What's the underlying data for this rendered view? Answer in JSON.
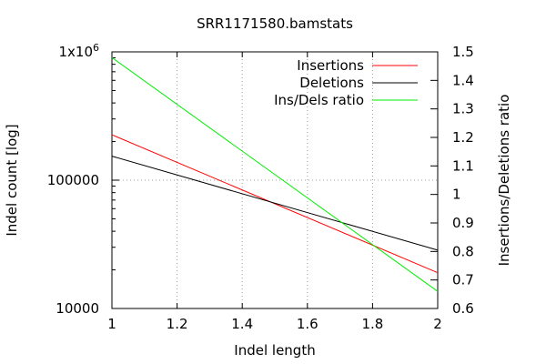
{
  "chart_data": {
    "type": "line",
    "title": "SRR1171580.bamstats",
    "xlabel": "Indel length",
    "ylabel": "Indel count [log]",
    "y2label": "Insertions/Deletions ratio",
    "xlim": [
      1,
      2
    ],
    "ylim": [
      10000,
      1000000
    ],
    "y2lim": [
      0.6,
      1.5
    ],
    "yscale": "log",
    "grid": true,
    "legend_position": "top-right",
    "x_ticks": [
      {
        "value": 1,
        "label": "1"
      },
      {
        "value": 1.2,
        "label": "1.2"
      },
      {
        "value": 1.4,
        "label": "1.4"
      },
      {
        "value": 1.6,
        "label": "1.6"
      },
      {
        "value": 1.8,
        "label": "1.8"
      },
      {
        "value": 2,
        "label": "2"
      }
    ],
    "y_ticks": [
      {
        "value": 10000,
        "label": "10000"
      },
      {
        "value": 100000,
        "label": "100000"
      },
      {
        "value": 1000000,
        "label": "1x10",
        "sup": "6"
      }
    ],
    "y_minor_ticks": [
      20000,
      30000,
      40000,
      50000,
      60000,
      70000,
      80000,
      90000,
      200000,
      300000,
      400000,
      500000,
      600000,
      700000,
      800000,
      900000
    ],
    "y2_ticks": [
      {
        "value": 0.6,
        "label": "0.6"
      },
      {
        "value": 0.7,
        "label": "0.7"
      },
      {
        "value": 0.8,
        "label": "0.8"
      },
      {
        "value": 0.9,
        "label": "0.9"
      },
      {
        "value": 1,
        "label": "1"
      },
      {
        "value": 1.1,
        "label": "1.1"
      },
      {
        "value": 1.2,
        "label": "1.2"
      },
      {
        "value": 1.3,
        "label": "1.3"
      },
      {
        "value": 1.4,
        "label": "1.4"
      },
      {
        "value": 1.5,
        "label": "1.5"
      }
    ],
    "series": [
      {
        "name": "Insertions",
        "color": "#ff0000",
        "axis": "y",
        "x": [
          1,
          2
        ],
        "values": [
          226000,
          19000
        ]
      },
      {
        "name": "Deletions",
        "color": "#000000",
        "axis": "y",
        "x": [
          1,
          2
        ],
        "values": [
          154000,
          28500
        ]
      },
      {
        "name": "Ins/Dels ratio",
        "color": "#00ee00",
        "axis": "y2",
        "x": [
          1,
          2
        ],
        "values": [
          1.48,
          0.66
        ]
      }
    ]
  }
}
